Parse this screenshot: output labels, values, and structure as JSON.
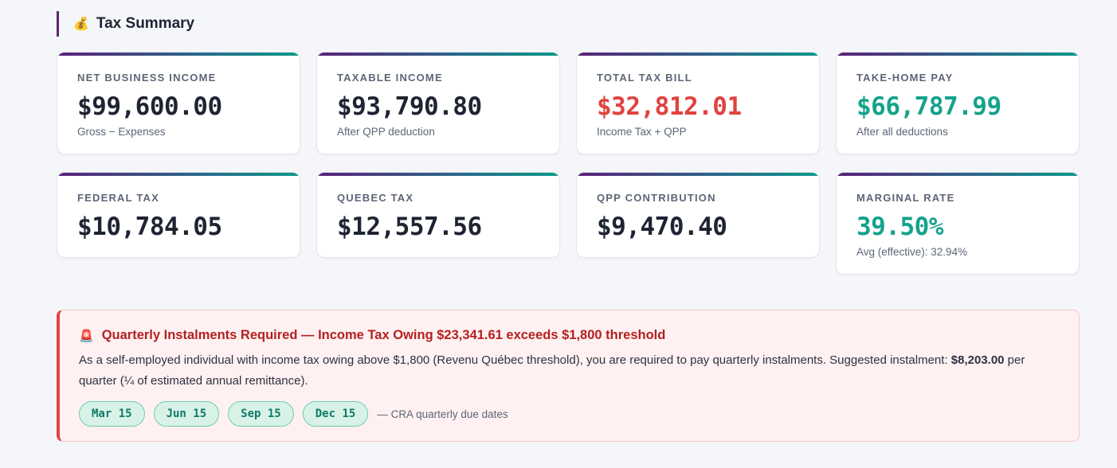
{
  "header": {
    "icon": "💰",
    "title": "Tax Summary"
  },
  "cards": [
    {
      "label": "NET BUSINESS INCOME",
      "value": "$99,600.00",
      "sub": "Gross − Expenses"
    },
    {
      "label": "TAXABLE INCOME",
      "value": "$93,790.80",
      "sub": "After QPP deduction"
    },
    {
      "label": "TOTAL TAX BILL",
      "value": "$32,812.01",
      "sub": "Income Tax + QPP",
      "color": "#e0433f"
    },
    {
      "label": "TAKE-HOME PAY",
      "value": "$66,787.99",
      "sub": "After all deductions",
      "color": "#15a28c"
    },
    {
      "label": "FEDERAL TAX",
      "value": "$10,784.05"
    },
    {
      "label": "QUEBEC TAX",
      "value": "$12,557.56"
    },
    {
      "label": "QPP CONTRIBUTION",
      "value": "$9,470.40"
    },
    {
      "label": "MARGINAL RATE",
      "value": "39.50%",
      "sub": "Avg (effective): 32.94%",
      "color": "#15a28c"
    }
  ],
  "alert": {
    "icon": "🚨",
    "heading": "Quarterly Instalments Required — Income Tax Owing $23,341.61 exceeds $1,800 threshold",
    "body_before": "As a self-employed individual with income tax owing above $1,800 (Revenu Québec threshold), you are required to pay quarterly instalments. Suggested instalment: ",
    "body_amount": "$8,203.00",
    "body_after": " per quarter (¼ of estimated annual remittance).",
    "dates": [
      "Mar 15",
      "Jun 15",
      "Sep 15",
      "Dec 15"
    ],
    "dates_note": "— CRA quarterly due dates"
  }
}
